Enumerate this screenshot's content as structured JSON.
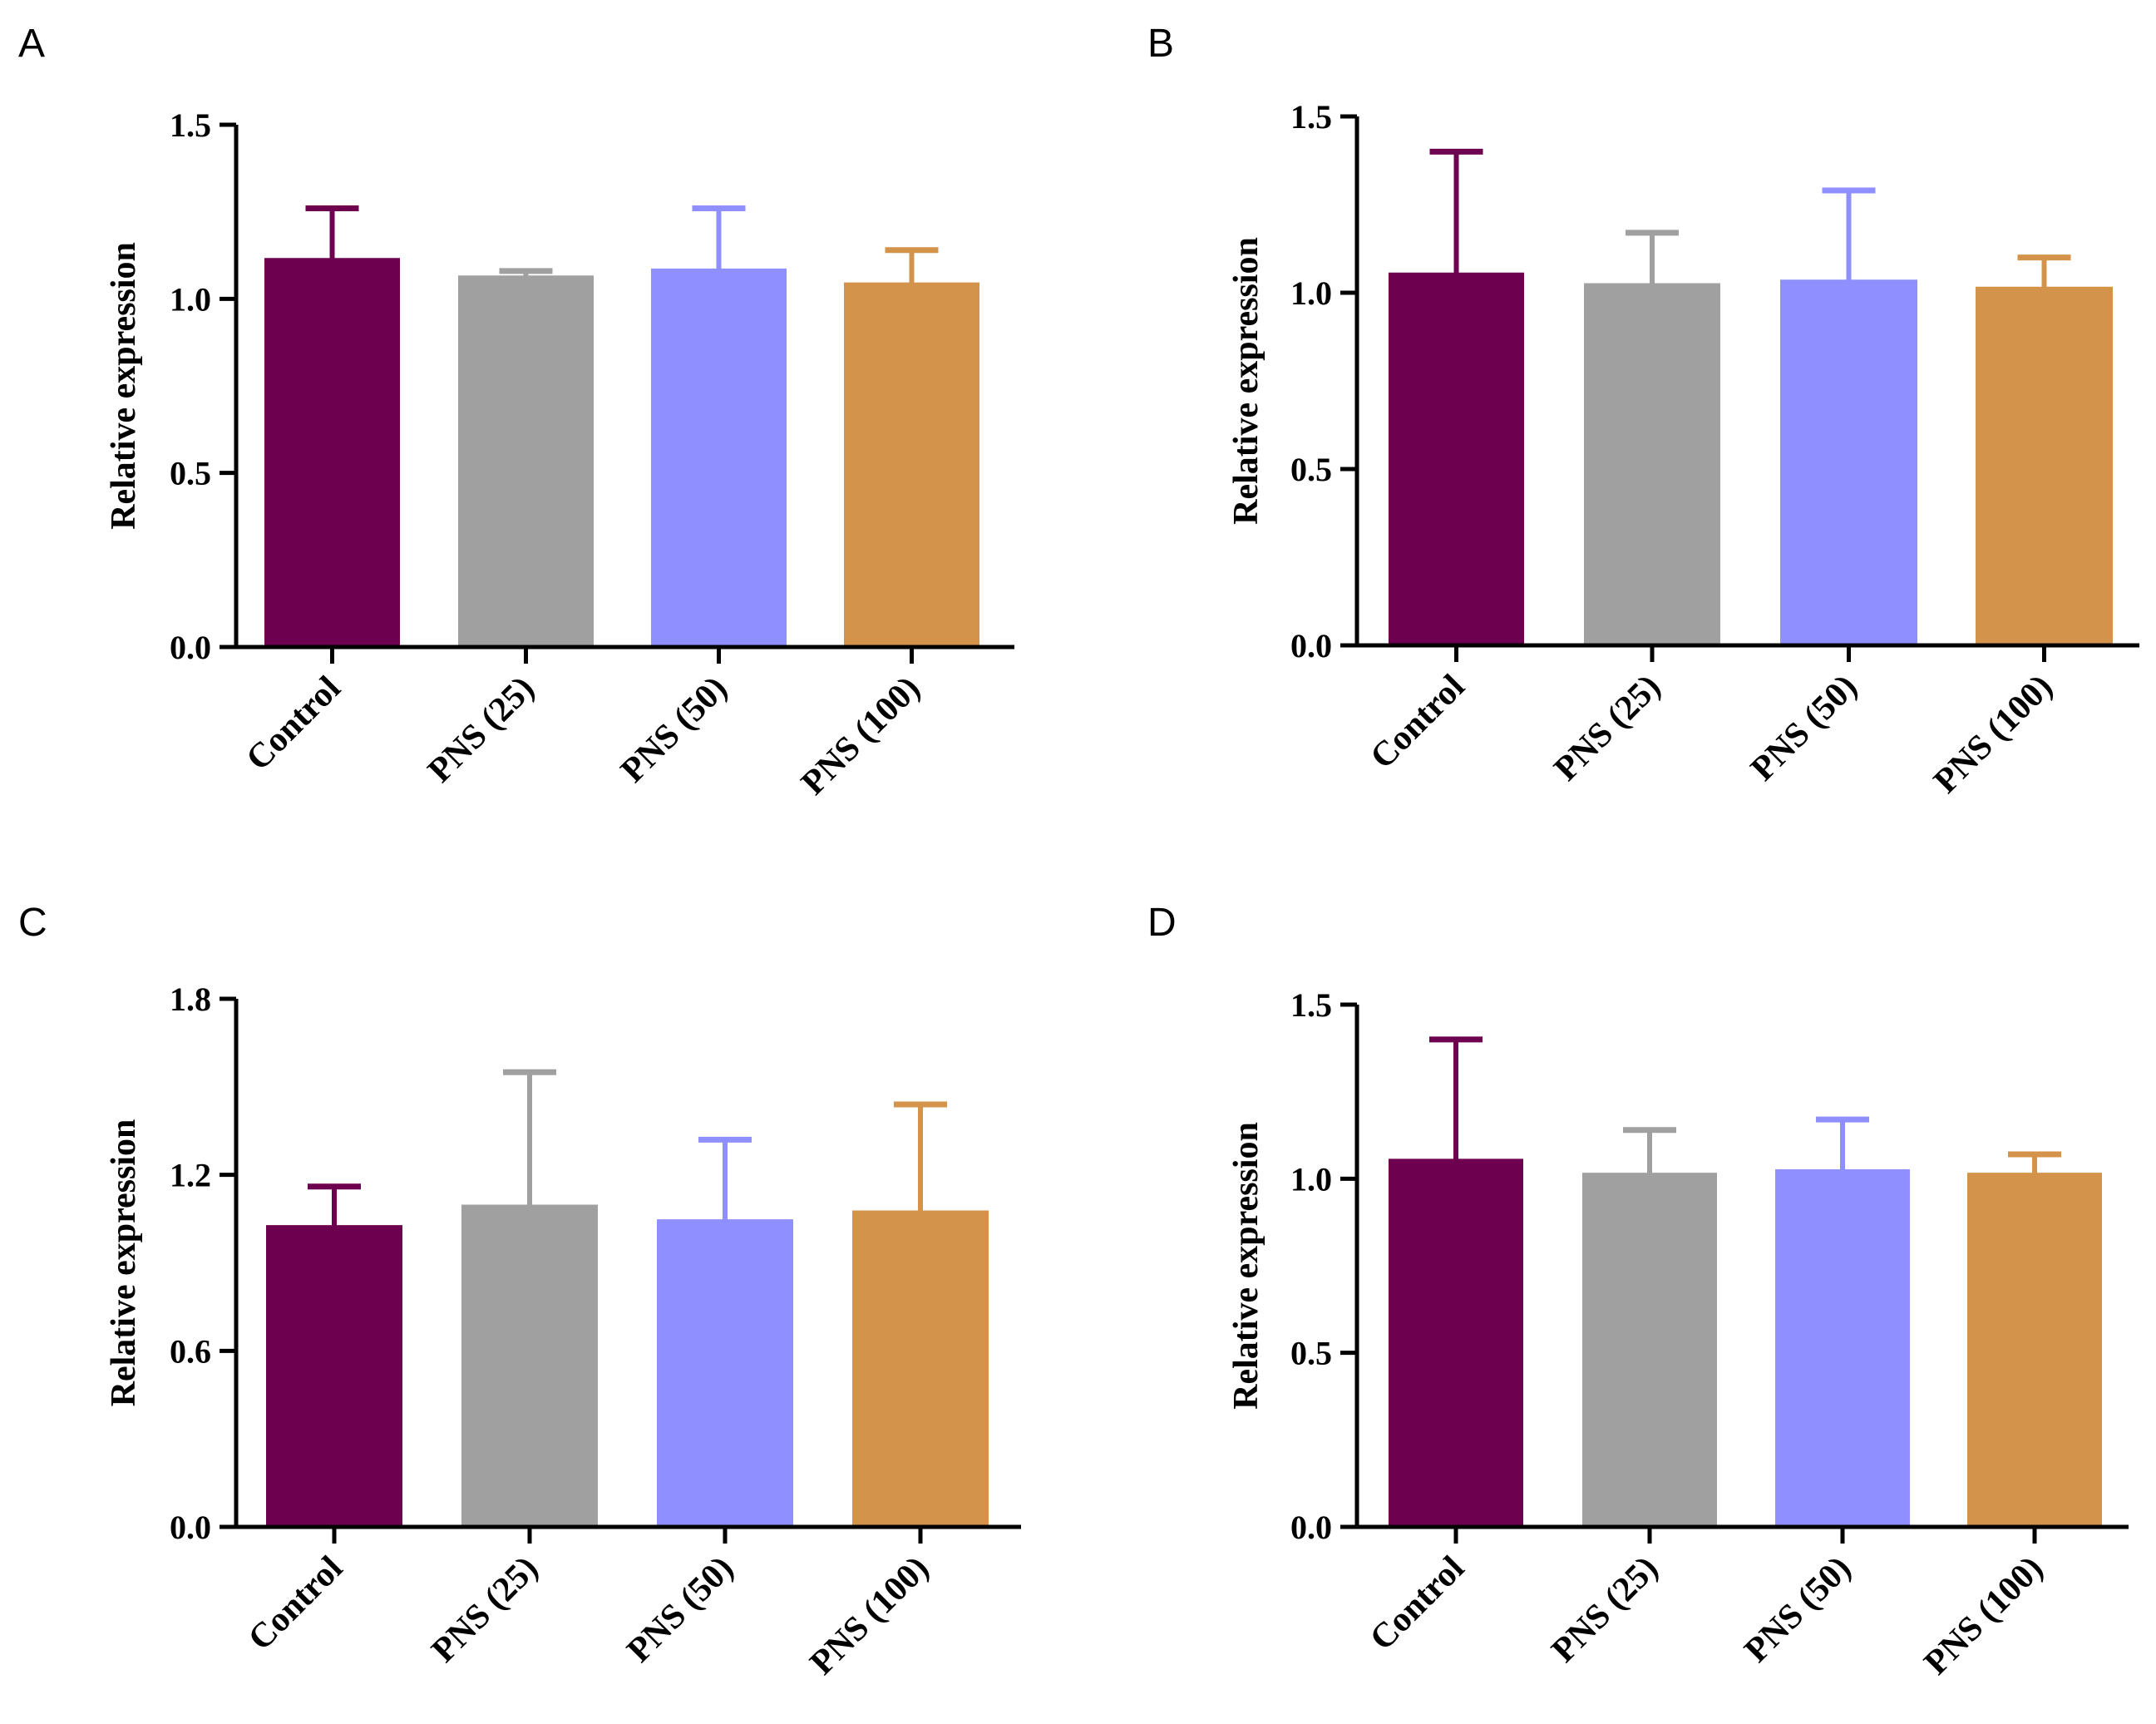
{
  "chart_data": [
    {
      "panel": "A",
      "type": "bar",
      "ylabel": "Relative expression",
      "categories": [
        "Control",
        "PNS (25)",
        "PNS (50)",
        "PNS (100)"
      ],
      "values": [
        1.11,
        1.06,
        1.08,
        1.04
      ],
      "errors": [
        0.15,
        0.02,
        0.18,
        0.1
      ],
      "ylim": [
        0,
        1.5
      ],
      "yticks": [
        "0.0",
        "0.5",
        "1.0",
        "1.5"
      ],
      "colors": [
        "#6e0050",
        "#a0a0a0",
        "#8f8fff",
        "#d4934a"
      ]
    },
    {
      "panel": "B",
      "type": "bar",
      "ylabel": "Relative expression",
      "categories": [
        "Control",
        "PNS (25)",
        "PNS (50)",
        "PNS (100)"
      ],
      "values": [
        1.05,
        1.02,
        1.03,
        1.01
      ],
      "errors": [
        0.35,
        0.15,
        0.26,
        0.09
      ],
      "ylim": [
        0,
        1.5
      ],
      "yticks": [
        "0.0",
        "0.5",
        "1.0",
        "1.5"
      ],
      "colors": [
        "#6e0050",
        "#a0a0a0",
        "#8f8fff",
        "#d4934a"
      ]
    },
    {
      "panel": "C",
      "type": "bar",
      "ylabel": "Relative expression",
      "categories": [
        "Control",
        "PNS (25)",
        "PNS (50)",
        "PNS (100)"
      ],
      "values": [
        1.02,
        1.09,
        1.04,
        1.07
      ],
      "errors": [
        0.14,
        0.46,
        0.28,
        0.37
      ],
      "ylim": [
        0,
        1.8
      ],
      "yticks": [
        "0.0",
        "0.6",
        "1.2",
        "1.8"
      ],
      "colors": [
        "#6e0050",
        "#a0a0a0",
        "#8f8fff",
        "#d4934a"
      ]
    },
    {
      "panel": "D",
      "type": "bar",
      "ylabel": "Relative expression",
      "categories": [
        "Control",
        "PNS (25)",
        "PNS (50)",
        "PNS (100)"
      ],
      "values": [
        1.05,
        1.01,
        1.02,
        1.01
      ],
      "errors": [
        0.35,
        0.13,
        0.15,
        0.06
      ],
      "ylim": [
        0,
        1.5
      ],
      "yticks": [
        "0.0",
        "0.5",
        "1.0",
        "1.5"
      ],
      "colors": [
        "#6e0050",
        "#a0a0a0",
        "#8f8fff",
        "#d4934a"
      ]
    }
  ]
}
